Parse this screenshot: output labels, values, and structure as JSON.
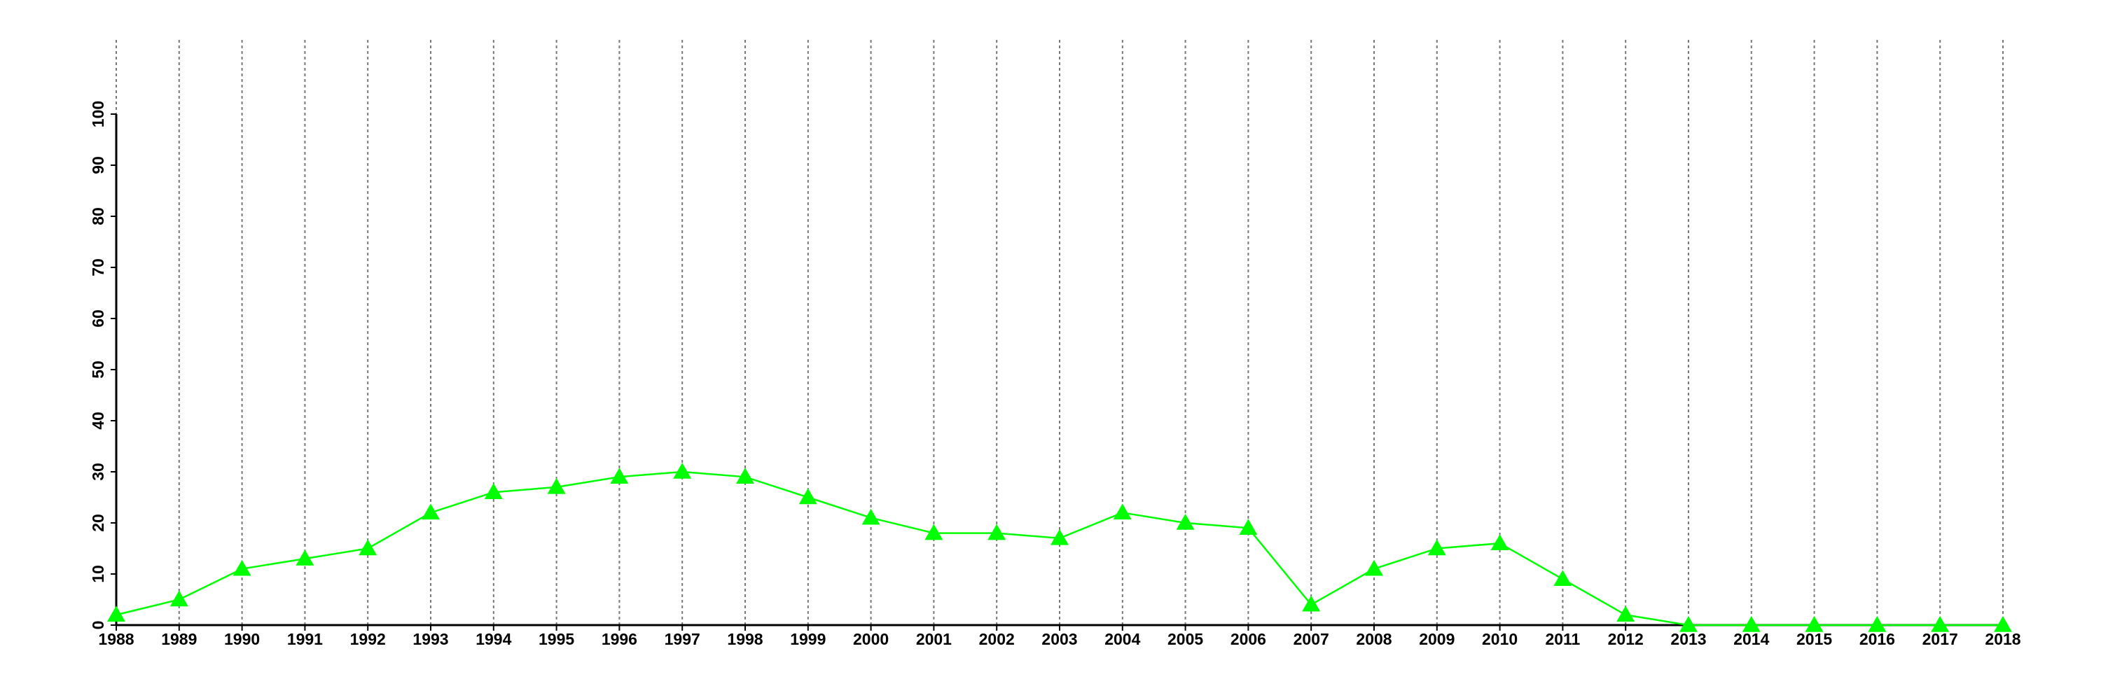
{
  "chart_data": {
    "type": "line",
    "x": [
      1988,
      1989,
      1990,
      1991,
      1992,
      1993,
      1994,
      1995,
      1996,
      1997,
      1998,
      1999,
      2000,
      2001,
      2002,
      2003,
      2004,
      2005,
      2006,
      2007,
      2008,
      2009,
      2010,
      2011,
      2012,
      2013,
      2014,
      2015,
      2016,
      2017,
      2018
    ],
    "values": [
      2,
      5,
      11,
      13,
      15,
      22,
      26,
      27,
      29,
      30,
      29,
      25,
      21,
      18,
      18,
      17,
      22,
      20,
      19,
      4,
      11,
      15,
      16,
      9,
      2,
      0,
      0,
      0,
      0,
      0,
      0
    ],
    "color": "#00ff00",
    "marker": "triangle",
    "xlim": [
      1988,
      2018
    ],
    "xticks": [
      1988,
      1989,
      1990,
      1991,
      1992,
      1993,
      1994,
      1995,
      1996,
      1997,
      1998,
      1999,
      2000,
      2001,
      2002,
      2003,
      2004,
      2005,
      2006,
      2007,
      2008,
      2009,
      2010,
      2011,
      2012,
      2013,
      2014,
      2015,
      2016,
      2017,
      2018
    ],
    "ylim": [
      0,
      100
    ],
    "yticks": [
      0,
      10,
      20,
      30,
      40,
      50,
      60,
      70,
      80,
      90,
      100
    ],
    "grid": true
  }
}
